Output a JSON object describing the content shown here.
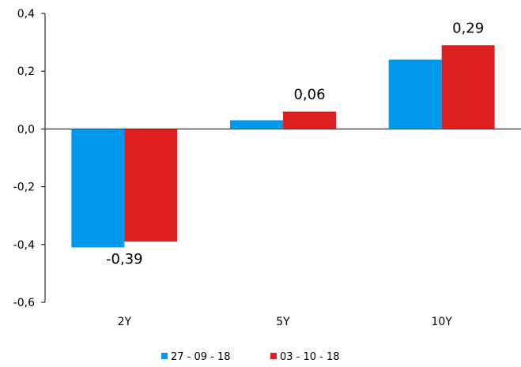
{
  "chart_data": {
    "type": "bar",
    "categories": [
      "2Y",
      "5Y",
      "10Y"
    ],
    "series": [
      {
        "name": "27 - 09 - 18",
        "color": "#0099ee",
        "values": [
          -0.41,
          0.03,
          0.24
        ]
      },
      {
        "name": "03 - 10 - 18",
        "color": "#dd1f1f",
        "values": [
          -0.39,
          0.06,
          0.29
        ]
      }
    ],
    "data_labels": [
      {
        "text": "-0,39",
        "category": 0,
        "series": 1
      },
      {
        "text": "0,06",
        "category": 1,
        "series": 1
      },
      {
        "text": "0,29",
        "category": 2,
        "series": 1
      }
    ],
    "y_ticks": [
      {
        "value": 0.4,
        "label": "0,4"
      },
      {
        "value": 0.2,
        "label": "0,2"
      },
      {
        "value": 0.0,
        "label": "0,0"
      },
      {
        "value": -0.2,
        "label": "-0,2"
      },
      {
        "value": -0.4,
        "label": "-0,4"
      },
      {
        "value": -0.6,
        "label": "-0,6"
      }
    ],
    "ylim": [
      -0.6,
      0.4
    ],
    "grid": false,
    "legend_position": "bottom",
    "title": "",
    "xlabel": "",
    "ylabel": ""
  }
}
